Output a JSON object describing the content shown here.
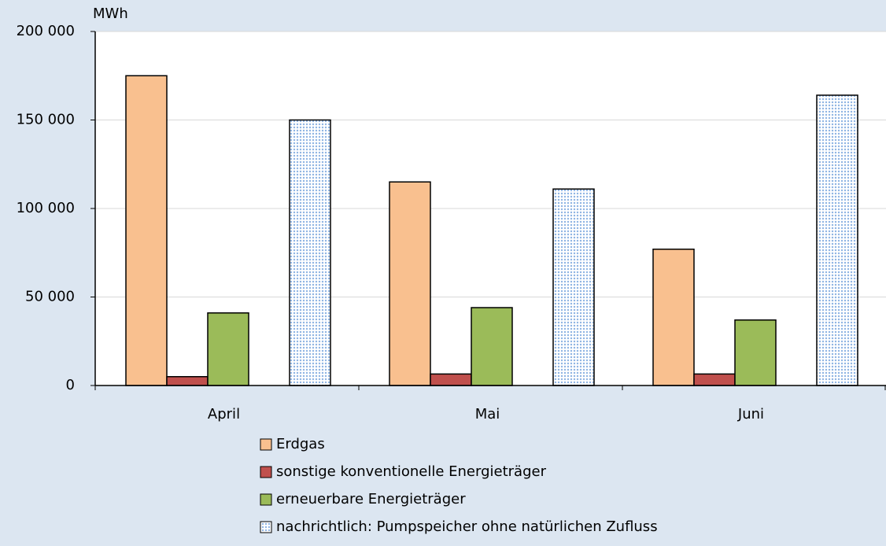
{
  "chart_data": {
    "type": "bar",
    "y_unit": "MWh",
    "categories": [
      "April",
      "Mai",
      "Juni"
    ],
    "series": [
      {
        "name": "Erdgas",
        "color": "#f9c08f",
        "values": [
          175000,
          115000,
          77000
        ]
      },
      {
        "name": "sonstige konventionelle Energieträger",
        "color": "#c0504d",
        "values": [
          5000,
          6500,
          6500
        ]
      },
      {
        "name": "erneuerbare Energieträger",
        "color": "#9bbb59",
        "values": [
          41000,
          44000,
          37000
        ]
      },
      {
        "name": "nachrichtlich: Pumpspeicher ohne natürlichen Zufluss",
        "color": "#b9cde5",
        "pattern": "dots",
        "values": [
          150000,
          111000,
          164000
        ]
      }
    ],
    "ylim": [
      0,
      200000
    ],
    "yticks": [
      0,
      {
        "value": 50000,
        "label": "50 000"
      },
      {
        "value": 100000,
        "label": "100 000"
      },
      {
        "value": 150000,
        "label": "150 000"
      },
      {
        "value": 200000,
        "label": "200 000"
      }
    ],
    "grid": true
  }
}
